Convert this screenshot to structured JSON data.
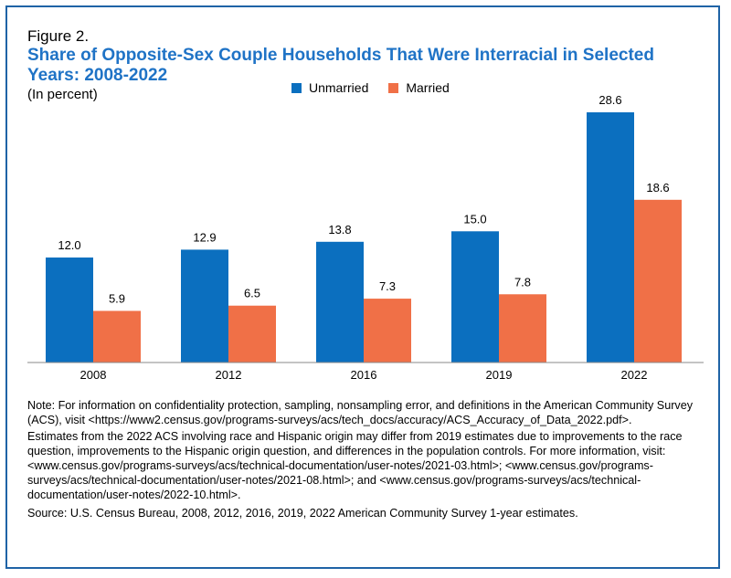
{
  "figure_label": "Figure 2.",
  "title_parts": {
    "pre": "Share of ",
    "bold": "Opposite-Sex",
    "post": " Couple Households That Were Interracial in Selected Years: 2008-2022"
  },
  "subtitle": "(In percent)",
  "colors": {
    "unmarried": "#0b6fbf",
    "married": "#f07047",
    "title": "#1f73c6",
    "frame": "#1f63a6"
  },
  "chart_data": {
    "type": "bar",
    "categories": [
      "2008",
      "2012",
      "2016",
      "2019",
      "2022"
    ],
    "series": [
      {
        "name": "Unmarried",
        "values": [
          12.0,
          12.9,
          13.8,
          15.0,
          28.6
        ],
        "labels": [
          "12.0",
          "12.9",
          "13.8",
          "15.0",
          "28.6"
        ]
      },
      {
        "name": "Married",
        "values": [
          5.9,
          6.5,
          7.3,
          7.8,
          18.6
        ],
        "labels": [
          "5.9",
          "6.5",
          "7.3",
          "7.8",
          "18.6"
        ]
      }
    ],
    "legend_position": "top-center",
    "grid": false
  },
  "notes": {
    "note1": "Note: For information on confidentiality protection, sampling, nonsampling error, and definitions in the American Community Survey (ACS), visit <https://www2.census.gov/programs-surveys/acs/tech_docs/accuracy/ACS_Accuracy_of_Data_2022.pdf>.",
    "note2": "Estimates from the 2022 ACS involving race and Hispanic origin may differ from 2019 estimates due to improvements to the race question, improvements to the Hispanic origin question, and differences in the population controls. For more information, visit: <www.census.gov/programs-surveys/acs/technical-documentation/user-notes/2021-03.html>; <www.census.gov/programs-surveys/acs/technical-documentation/user-notes/2021-08.html>; and <www.census.gov/programs-surveys/acs/technical-documentation/user-notes/2022-10.html>.",
    "source": "Source: U.S. Census Bureau, 2008, 2012, 2016, 2019, 2022 American Community Survey 1-year estimates."
  }
}
